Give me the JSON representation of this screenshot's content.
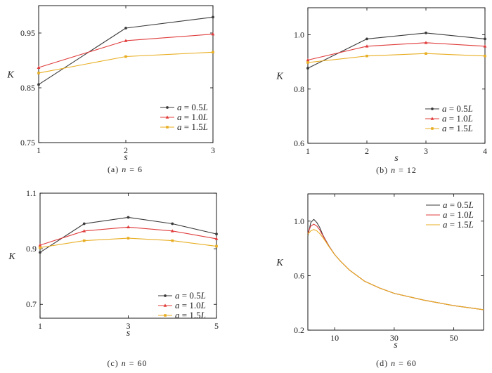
{
  "colors": {
    "a05": "#3a3a3a",
    "a10": "#e03c3c",
    "a15": "#e8ae22",
    "axis": "#000000"
  },
  "chart_data": [
    {
      "id": "a",
      "type": "line",
      "caption": "(a) n = 6",
      "caption_parts": [
        "(a)",
        "n",
        "= 6"
      ],
      "xlabel": "s",
      "ylabel": "K",
      "xlim": [
        1,
        3
      ],
      "ylim": [
        0.75,
        1.0
      ],
      "xticks": [
        1,
        2,
        3
      ],
      "xtick_labels": [
        "1",
        "2",
        "3"
      ],
      "yticks": [
        0.75,
        0.85,
        0.95
      ],
      "ytick_labels": [
        "0.75",
        "0.85",
        "0.95"
      ],
      "markers": true,
      "legend_position": "bottom-right",
      "series": [
        {
          "name": "a = 0.5L",
          "var": "a",
          "rest": " = 0.5",
          "unit": "L",
          "color": "#3a3a3a",
          "x": [
            1,
            2,
            3
          ],
          "values": [
            0.856,
            0.959,
            0.979
          ]
        },
        {
          "name": "a = 1.0L",
          "var": "a",
          "rest": " = 1.0",
          "unit": "L",
          "color": "#e03c3c",
          "x": [
            1,
            2,
            3
          ],
          "values": [
            0.887,
            0.936,
            0.948
          ]
        },
        {
          "name": "a = 1.5L",
          "var": "a",
          "rest": " = 1.5",
          "unit": "L",
          "color": "#e8ae22",
          "x": [
            1,
            2,
            3
          ],
          "values": [
            0.877,
            0.907,
            0.915
          ]
        }
      ]
    },
    {
      "id": "b",
      "type": "line",
      "caption": "(b) n = 12",
      "caption_parts": [
        "(b)",
        "n",
        "= 12"
      ],
      "xlabel": "s",
      "ylabel": "K",
      "xlim": [
        1,
        4
      ],
      "ylim": [
        0.6,
        1.1
      ],
      "xticks": [
        1,
        2,
        3,
        4
      ],
      "xtick_labels": [
        "1",
        "2",
        "3",
        "4"
      ],
      "yticks": [
        0.6,
        0.8,
        1.0
      ],
      "ytick_labels": [
        "0.6",
        "0.8",
        "1.0"
      ],
      "markers": true,
      "legend_position": "bottom-right",
      "series": [
        {
          "name": "a = 0.5L",
          "var": "a",
          "rest": " = 0.5",
          "unit": "L",
          "color": "#3a3a3a",
          "x": [
            1,
            2,
            3,
            4
          ],
          "values": [
            0.877,
            0.985,
            1.007,
            0.985
          ]
        },
        {
          "name": "a = 1.0L",
          "var": "a",
          "rest": " = 1.0",
          "unit": "L",
          "color": "#e03c3c",
          "x": [
            1,
            2,
            3,
            4
          ],
          "values": [
            0.907,
            0.958,
            0.971,
            0.958
          ]
        },
        {
          "name": "a = 1.5L",
          "var": "a",
          "rest": " = 1.5",
          "unit": "L",
          "color": "#e8ae22",
          "x": [
            1,
            2,
            3,
            4
          ],
          "values": [
            0.898,
            0.922,
            0.931,
            0.922
          ]
        }
      ]
    },
    {
      "id": "c",
      "type": "line",
      "caption": "(c) n = 60",
      "caption_parts": [
        "(c)",
        "n",
        "= 60"
      ],
      "xlabel": "s",
      "ylabel": "K",
      "xlim": [
        1,
        5
      ],
      "ylim": [
        0.65,
        1.1
      ],
      "xticks": [
        1,
        3,
        5
      ],
      "xtick_labels": [
        "1",
        "3",
        "5"
      ],
      "yticks": [
        0.7,
        0.9,
        1.1
      ],
      "ytick_labels": [
        "0.7",
        "0.9",
        "1.1"
      ],
      "markers": true,
      "legend_position": "bottom-right",
      "series": [
        {
          "name": "a = 0.5L",
          "var": "a",
          "rest": " = 0.5",
          "unit": "L",
          "color": "#3a3a3a",
          "x": [
            1,
            2,
            3,
            4,
            5
          ],
          "values": [
            0.887,
            0.99,
            1.013,
            0.99,
            0.953
          ]
        },
        {
          "name": "a = 1.0L",
          "var": "a",
          "rest": " = 1.0",
          "unit": "L",
          "color": "#e03c3c",
          "x": [
            1,
            2,
            3,
            4,
            5
          ],
          "values": [
            0.913,
            0.964,
            0.978,
            0.964,
            0.936
          ]
        },
        {
          "name": "a = 1.5L",
          "var": "a",
          "rest": " = 1.5",
          "unit": "L",
          "color": "#e8ae22",
          "x": [
            1,
            2,
            3,
            4,
            5
          ],
          "values": [
            0.904,
            0.929,
            0.938,
            0.929,
            0.909
          ]
        }
      ]
    },
    {
      "id": "d",
      "type": "line",
      "caption": "(d) n = 60",
      "caption_parts": [
        "(d)",
        "n",
        "= 60"
      ],
      "xlabel": "s",
      "ylabel": "K",
      "xlim": [
        1,
        60
      ],
      "ylim": [
        0.2,
        1.2
      ],
      "xticks": [
        10,
        30,
        50
      ],
      "xtick_labels": [
        "10",
        "30",
        "50"
      ],
      "yticks": [
        0.2,
        0.6,
        1.0
      ],
      "ytick_labels": [
        "0.2",
        "0.6",
        "1.0"
      ],
      "markers": false,
      "legend_position": "top-right",
      "series": [
        {
          "name": "a = 0.5L",
          "var": "a",
          "rest": " = 0.5",
          "unit": "L",
          "color": "#3a3a3a",
          "x": [
            1,
            2,
            3,
            4,
            5,
            6,
            7,
            8,
            10,
            12,
            15,
            20,
            25,
            30,
            40,
            50,
            60
          ],
          "values": [
            0.89,
            0.99,
            1.013,
            0.99,
            0.953,
            0.9,
            0.86,
            0.82,
            0.755,
            0.705,
            0.64,
            0.56,
            0.51,
            0.47,
            0.42,
            0.38,
            0.35
          ]
        },
        {
          "name": "a = 1.0L",
          "var": "a",
          "rest": " = 1.0",
          "unit": "L",
          "color": "#e03c3c",
          "x": [
            1,
            2,
            3,
            4,
            5,
            6,
            7,
            8,
            10,
            12,
            15,
            20,
            25,
            30,
            40,
            50,
            60
          ],
          "values": [
            0.913,
            0.964,
            0.978,
            0.964,
            0.936,
            0.895,
            0.857,
            0.818,
            0.755,
            0.705,
            0.64,
            0.56,
            0.51,
            0.47,
            0.42,
            0.38,
            0.35
          ]
        },
        {
          "name": "a = 1.5L",
          "var": "a",
          "rest": " = 1.5",
          "unit": "L",
          "color": "#e8ae22",
          "x": [
            1,
            2,
            3,
            4,
            5,
            6,
            7,
            8,
            10,
            12,
            15,
            20,
            25,
            30,
            40,
            50,
            60
          ],
          "values": [
            0.904,
            0.929,
            0.938,
            0.929,
            0.909,
            0.88,
            0.85,
            0.815,
            0.755,
            0.705,
            0.64,
            0.56,
            0.51,
            0.47,
            0.42,
            0.38,
            0.35
          ]
        }
      ]
    }
  ]
}
